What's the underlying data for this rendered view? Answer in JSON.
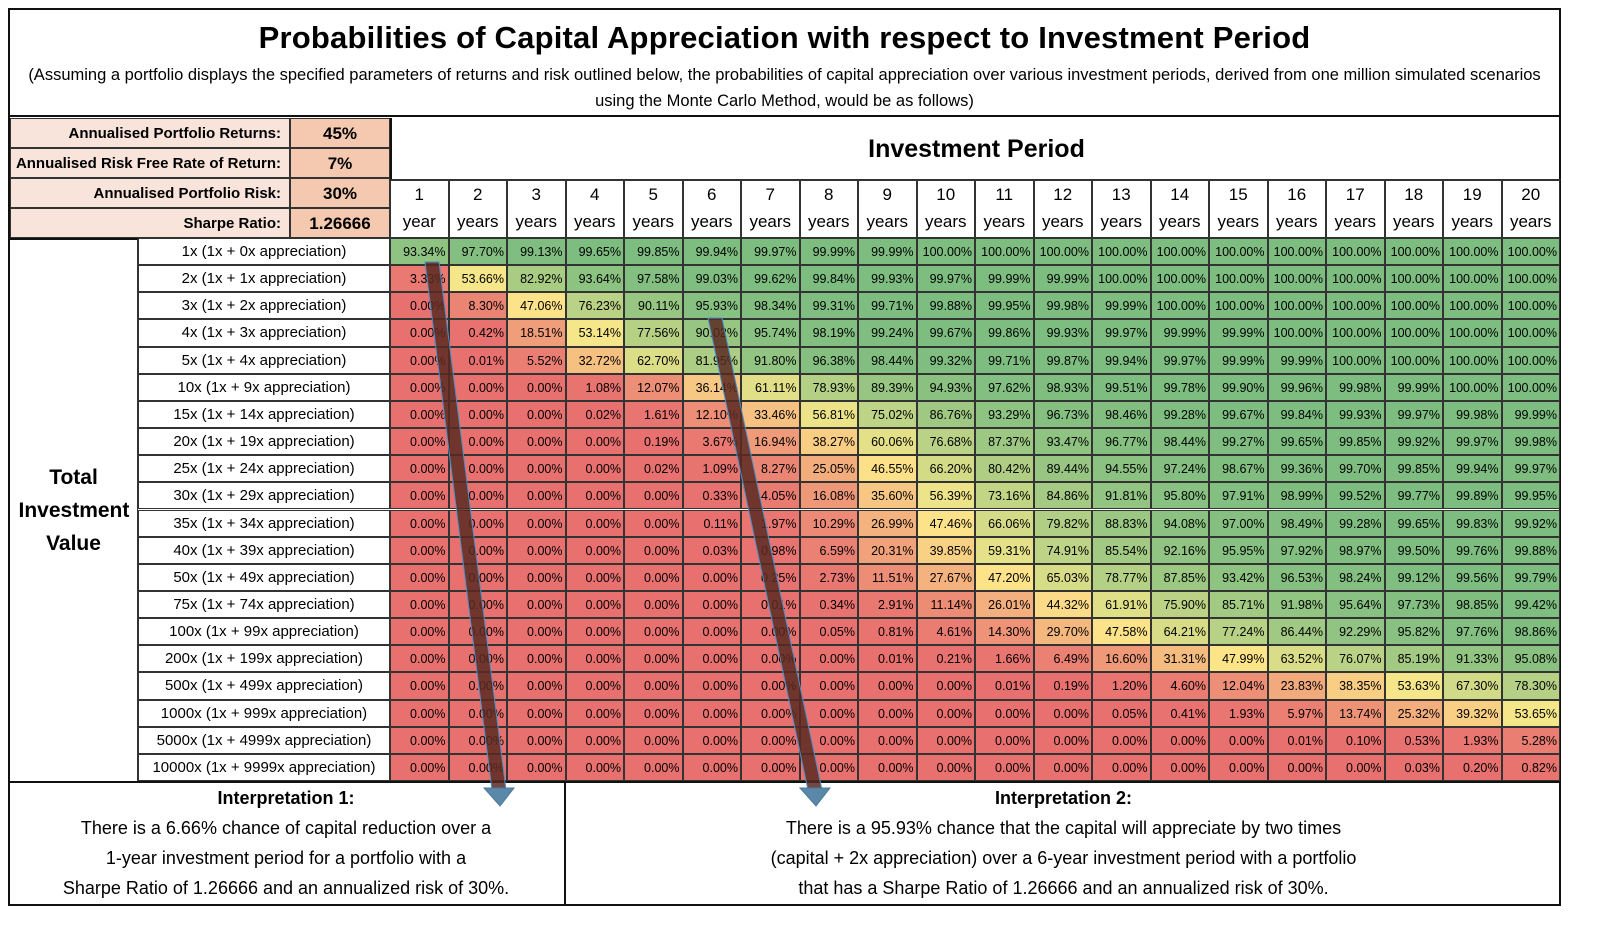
{
  "header": {
    "title": "Probabilities of Capital Appreciation with respect to Investment Period",
    "subtitle": "(Assuming a portfolio displays the specified parameters of returns and risk outlined below, the probabilities of capital appreciation over various investment periods, derived from one million simulated scenarios using the Monte Carlo Method, would be as follows)"
  },
  "parameters": [
    {
      "label": "Annualised Portfolio Returns:",
      "value": "45%"
    },
    {
      "label": "Annualised Risk Free Rate of Return:",
      "value": "7%"
    },
    {
      "label": "Annualised Portfolio Risk:",
      "value": "30%"
    },
    {
      "label": "Sharpe Ratio:",
      "value": "1.26666"
    }
  ],
  "colors": {
    "low": "#E8716F",
    "mid": "#FDE98A",
    "high": "#7DBD80",
    "param_label_bg": "#F8E4DA",
    "param_value_bg": "#F4C9AF",
    "arrow_fill": "#5A2A22",
    "arrow_head": "#5B87A8"
  },
  "chart_data": {
    "type": "heatmap",
    "title": "Investment Period",
    "row_axis_label": "Total Investment Value",
    "columns": [
      {
        "num": "1",
        "unit": "year"
      },
      {
        "num": "2",
        "unit": "years"
      },
      {
        "num": "3",
        "unit": "years"
      },
      {
        "num": "4",
        "unit": "years"
      },
      {
        "num": "5",
        "unit": "years"
      },
      {
        "num": "6",
        "unit": "years"
      },
      {
        "num": "7",
        "unit": "years"
      },
      {
        "num": "8",
        "unit": "years"
      },
      {
        "num": "9",
        "unit": "years"
      },
      {
        "num": "10",
        "unit": "years"
      },
      {
        "num": "11",
        "unit": "years"
      },
      {
        "num": "12",
        "unit": "years"
      },
      {
        "num": "13",
        "unit": "years"
      },
      {
        "num": "14",
        "unit": "years"
      },
      {
        "num": "15",
        "unit": "years"
      },
      {
        "num": "16",
        "unit": "years"
      },
      {
        "num": "17",
        "unit": "years"
      },
      {
        "num": "18",
        "unit": "years"
      },
      {
        "num": "19",
        "unit": "years"
      },
      {
        "num": "20",
        "unit": "years"
      }
    ],
    "rows": [
      {
        "label": "1x  (1x + 0x appreciation)",
        "values": [
          93.34,
          97.7,
          99.13,
          99.65,
          99.85,
          99.94,
          99.97,
          99.99,
          99.99,
          100.0,
          100.0,
          100.0,
          100.0,
          100.0,
          100.0,
          100.0,
          100.0,
          100.0,
          100.0,
          100.0
        ]
      },
      {
        "label": "2x  (1x + 1x appreciation)",
        "values": [
          3.33,
          53.66,
          82.92,
          93.64,
          97.58,
          99.03,
          99.62,
          99.84,
          99.93,
          99.97,
          99.99,
          99.99,
          100.0,
          100.0,
          100.0,
          100.0,
          100.0,
          100.0,
          100.0,
          100.0
        ]
      },
      {
        "label": "3x  (1x + 2x appreciation)",
        "values": [
          0.0,
          8.3,
          47.06,
          76.23,
          90.11,
          95.93,
          98.34,
          99.31,
          99.71,
          99.88,
          99.95,
          99.98,
          99.99,
          100.0,
          100.0,
          100.0,
          100.0,
          100.0,
          100.0,
          100.0
        ]
      },
      {
        "label": "4x  (1x + 3x appreciation)",
        "values": [
          0.0,
          0.42,
          18.51,
          53.14,
          77.56,
          90.02,
          95.74,
          98.19,
          99.24,
          99.67,
          99.86,
          99.93,
          99.97,
          99.99,
          99.99,
          100.0,
          100.0,
          100.0,
          100.0,
          100.0
        ]
      },
      {
        "label": "5x  (1x + 4x appreciation)",
        "values": [
          0.0,
          0.01,
          5.52,
          32.72,
          62.7,
          81.95,
          91.8,
          96.38,
          98.44,
          99.32,
          99.71,
          99.87,
          99.94,
          99.97,
          99.99,
          99.99,
          100.0,
          100.0,
          100.0,
          100.0
        ]
      },
      {
        "label": "10x  (1x + 9x appreciation)",
        "values": [
          0.0,
          0.0,
          0.0,
          1.08,
          12.07,
          36.14,
          61.11,
          78.93,
          89.39,
          94.93,
          97.62,
          98.93,
          99.51,
          99.78,
          99.9,
          99.96,
          99.98,
          99.99,
          100.0,
          100.0
        ]
      },
      {
        "label": "15x  (1x + 14x appreciation)",
        "values": [
          0.0,
          0.0,
          0.0,
          0.02,
          1.61,
          12.1,
          33.46,
          56.81,
          75.02,
          86.76,
          93.29,
          96.73,
          98.46,
          99.28,
          99.67,
          99.84,
          99.93,
          99.97,
          99.98,
          99.99
        ]
      },
      {
        "label": "20x  (1x + 19x appreciation)",
        "values": [
          0.0,
          0.0,
          0.0,
          0.0,
          0.19,
          3.67,
          16.94,
          38.27,
          60.06,
          76.68,
          87.37,
          93.47,
          96.77,
          98.44,
          99.27,
          99.65,
          99.85,
          99.92,
          99.97,
          99.98
        ]
      },
      {
        "label": "25x  (1x + 24x appreciation)",
        "values": [
          0.0,
          0.0,
          0.0,
          0.0,
          0.02,
          1.09,
          8.27,
          25.05,
          46.55,
          66.2,
          80.42,
          89.44,
          94.55,
          97.24,
          98.67,
          99.36,
          99.7,
          99.85,
          99.94,
          99.97
        ]
      },
      {
        "label": "30x  (1x + 29x appreciation)",
        "values": [
          0.0,
          0.0,
          0.0,
          0.0,
          0.0,
          0.33,
          4.05,
          16.08,
          35.6,
          56.39,
          73.16,
          84.86,
          91.81,
          95.8,
          97.91,
          98.99,
          99.52,
          99.77,
          99.89,
          99.95
        ]
      },
      {
        "label": "35x  (1x + 34x appreciation)",
        "values": [
          0.0,
          0.0,
          0.0,
          0.0,
          0.0,
          0.11,
          1.97,
          10.29,
          26.99,
          47.46,
          66.06,
          79.82,
          88.83,
          94.08,
          97.0,
          98.49,
          99.28,
          99.65,
          99.83,
          99.92
        ]
      },
      {
        "label": "40x  (1x + 39x appreciation)",
        "values": [
          0.0,
          0.0,
          0.0,
          0.0,
          0.0,
          0.03,
          0.98,
          6.59,
          20.31,
          39.85,
          59.31,
          74.91,
          85.54,
          92.16,
          95.95,
          97.92,
          98.97,
          99.5,
          99.76,
          99.88
        ]
      },
      {
        "label": "50x  (1x + 49x appreciation)",
        "values": [
          0.0,
          0.0,
          0.0,
          0.0,
          0.0,
          0.0,
          0.25,
          2.73,
          11.51,
          27.67,
          47.2,
          65.03,
          78.77,
          87.85,
          93.42,
          96.53,
          98.24,
          99.12,
          99.56,
          99.79
        ]
      },
      {
        "label": "75x  (1x + 74x appreciation)",
        "values": [
          0.0,
          0.0,
          0.0,
          0.0,
          0.0,
          0.0,
          0.01,
          0.34,
          2.91,
          11.14,
          26.01,
          44.32,
          61.91,
          75.9,
          85.71,
          91.98,
          95.64,
          97.73,
          98.85,
          99.42
        ]
      },
      {
        "label": "100x  (1x + 99x appreciation)",
        "values": [
          0.0,
          0.0,
          0.0,
          0.0,
          0.0,
          0.0,
          0.0,
          0.05,
          0.81,
          4.61,
          14.3,
          29.7,
          47.58,
          64.21,
          77.24,
          86.44,
          92.29,
          95.82,
          97.76,
          98.86
        ]
      },
      {
        "label": "200x  (1x + 199x appreciation)",
        "values": [
          0.0,
          0.0,
          0.0,
          0.0,
          0.0,
          0.0,
          0.0,
          0.0,
          0.01,
          0.21,
          1.66,
          6.49,
          16.6,
          31.31,
          47.99,
          63.52,
          76.07,
          85.19,
          91.33,
          95.08
        ]
      },
      {
        "label": "500x  (1x + 499x appreciation)",
        "values": [
          0.0,
          0.0,
          0.0,
          0.0,
          0.0,
          0.0,
          0.0,
          0.0,
          0.0,
          0.0,
          0.01,
          0.19,
          1.2,
          4.6,
          12.04,
          23.83,
          38.35,
          53.63,
          67.3,
          78.3
        ]
      },
      {
        "label": "1000x  (1x + 999x appreciation)",
        "values": [
          0.0,
          0.0,
          0.0,
          0.0,
          0.0,
          0.0,
          0.0,
          0.0,
          0.0,
          0.0,
          0.0,
          0.0,
          0.05,
          0.41,
          1.93,
          5.97,
          13.74,
          25.32,
          39.32,
          53.65
        ]
      },
      {
        "label": "5000x  (1x + 4999x appreciation)",
        "values": [
          0.0,
          0.0,
          0.0,
          0.0,
          0.0,
          0.0,
          0.0,
          0.0,
          0.0,
          0.0,
          0.0,
          0.0,
          0.0,
          0.0,
          0.0,
          0.01,
          0.1,
          0.53,
          1.93,
          5.28
        ]
      },
      {
        "label": "10000x  (1x + 9999x appreciation)",
        "values": [
          0.0,
          0.0,
          0.0,
          0.0,
          0.0,
          0.0,
          0.0,
          0.0,
          0.0,
          0.0,
          0.0,
          0.0,
          0.0,
          0.0,
          0.0,
          0.0,
          0.0,
          0.03,
          0.2,
          0.82
        ]
      }
    ],
    "value_unit": "%",
    "color_scale": "red-yellow-green"
  },
  "interpretations": [
    {
      "title": "Interpretation 1:",
      "lines": [
        "There is a 6.66% chance of capital reduction over a",
        "1-year investment period for a portfolio with a",
        "Sharpe Ratio of 1.26666 and an annualized risk of 30%."
      ]
    },
    {
      "title": "Interpretation 2:",
      "lines": [
        "There is a 95.93% chance that the capital will appreciate by two times",
        "(capital + 2x appreciation) over a 6-year investment period with a portfolio",
        "that has a Sharpe Ratio of 1.26666 and an annualized risk of 30%."
      ]
    }
  ]
}
